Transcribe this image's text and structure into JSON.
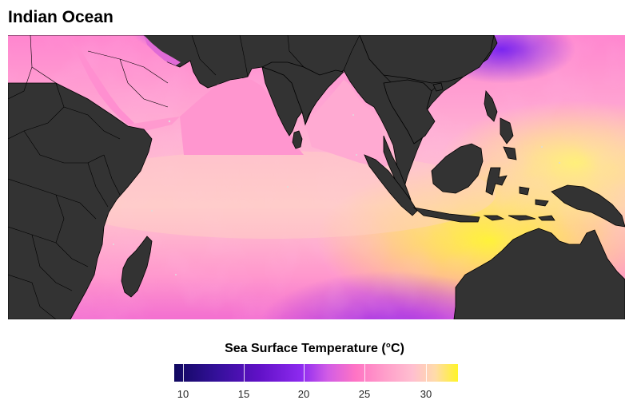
{
  "title": "Indian Ocean",
  "legend": {
    "title": "Sea Surface Temperature (°C)",
    "ticks": [
      "10",
      "15",
      "20",
      "25",
      "30"
    ],
    "scale_min": 8.6,
    "scale_max": 32.6,
    "colors": [
      "#10085f",
      "#34109a",
      "#6111c7",
      "#8e2bf0",
      "#d15ce6",
      "#ff74c4",
      "#ff9dca",
      "#ffbfd0",
      "#ffdba9",
      "#fff427"
    ]
  },
  "map": {
    "land_color": "#333333",
    "border_color": "#000000"
  }
}
